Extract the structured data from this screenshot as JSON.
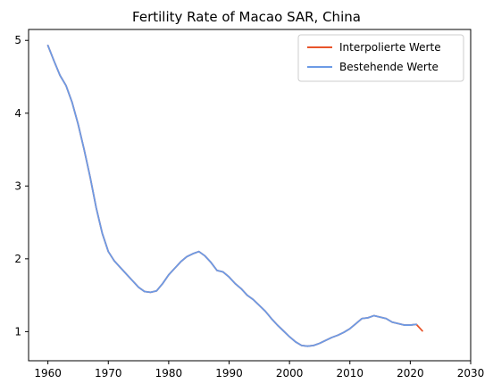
{
  "chart_data": {
    "type": "line",
    "title": "Fertility Rate of Macao SAR, China",
    "xlabel": "",
    "ylabel": "",
    "xlim": [
      1956.8,
      2030
    ],
    "ylim": [
      0.6,
      5.15
    ],
    "x_ticks": [
      1960,
      1970,
      1980,
      1990,
      2000,
      2010,
      2020,
      2030
    ],
    "y_ticks": [
      1,
      2,
      3,
      4,
      5
    ],
    "grid": false,
    "legend_position": "top-right",
    "series": [
      {
        "name": "Interpolierte Werte",
        "color": "#e8542a",
        "x": [
          1960,
          1961,
          1962,
          1963,
          1964,
          1965,
          1966,
          1967,
          1968,
          1969,
          1970,
          1971,
          1972,
          1973,
          1974,
          1975,
          1976,
          1977,
          1978,
          1979,
          1980,
          1981,
          1982,
          1983,
          1984,
          1985,
          1986,
          1987,
          1988,
          1989,
          1990,
          1991,
          1992,
          1993,
          1994,
          1995,
          1996,
          1997,
          1998,
          1999,
          2000,
          2001,
          2002,
          2003,
          2004,
          2005,
          2006,
          2007,
          2008,
          2009,
          2010,
          2011,
          2012,
          2013,
          2014,
          2015,
          2016,
          2017,
          2018,
          2019,
          2020,
          2021,
          2022
        ],
        "y": [
          4.93,
          4.72,
          4.52,
          4.38,
          4.15,
          3.85,
          3.5,
          3.12,
          2.7,
          2.35,
          2.1,
          1.97,
          1.88,
          1.79,
          1.7,
          1.61,
          1.55,
          1.54,
          1.56,
          1.66,
          1.78,
          1.87,
          1.96,
          2.03,
          2.07,
          2.1,
          2.04,
          1.95,
          1.84,
          1.82,
          1.75,
          1.66,
          1.59,
          1.5,
          1.44,
          1.36,
          1.28,
          1.18,
          1.09,
          1.01,
          0.93,
          0.86,
          0.81,
          0.8,
          0.81,
          0.84,
          0.88,
          0.92,
          0.95,
          0.99,
          1.04,
          1.11,
          1.18,
          1.19,
          1.22,
          1.2,
          1.18,
          1.13,
          1.11,
          1.09,
          1.09,
          1.1,
          1.01
        ]
      },
      {
        "name": "Bestehende Werte",
        "color": "#6c9be6",
        "x": [
          1960,
          1961,
          1962,
          1963,
          1964,
          1965,
          1966,
          1967,
          1968,
          1969,
          1970,
          1971,
          1972,
          1973,
          1974,
          1975,
          1976,
          1977,
          1978,
          1979,
          1980,
          1981,
          1982,
          1983,
          1984,
          1985,
          1986,
          1987,
          1988,
          1989,
          1990,
          1991,
          1992,
          1993,
          1994,
          1995,
          1996,
          1997,
          1998,
          1999,
          2000,
          2001,
          2002,
          2003,
          2004,
          2005,
          2006,
          2007,
          2008,
          2009,
          2010,
          2011,
          2012,
          2013,
          2014,
          2015,
          2016,
          2017,
          2018,
          2019,
          2020,
          2021
        ],
        "y": [
          4.93,
          4.72,
          4.52,
          4.38,
          4.15,
          3.85,
          3.5,
          3.12,
          2.7,
          2.35,
          2.1,
          1.97,
          1.88,
          1.79,
          1.7,
          1.61,
          1.55,
          1.54,
          1.56,
          1.66,
          1.78,
          1.87,
          1.96,
          2.03,
          2.07,
          2.1,
          2.04,
          1.95,
          1.84,
          1.82,
          1.75,
          1.66,
          1.59,
          1.5,
          1.44,
          1.36,
          1.28,
          1.18,
          1.09,
          1.01,
          0.93,
          0.86,
          0.81,
          0.8,
          0.81,
          0.84,
          0.88,
          0.92,
          0.95,
          0.99,
          1.04,
          1.11,
          1.18,
          1.19,
          1.22,
          1.2,
          1.18,
          1.13,
          1.11,
          1.09,
          1.09,
          1.1
        ]
      }
    ]
  }
}
